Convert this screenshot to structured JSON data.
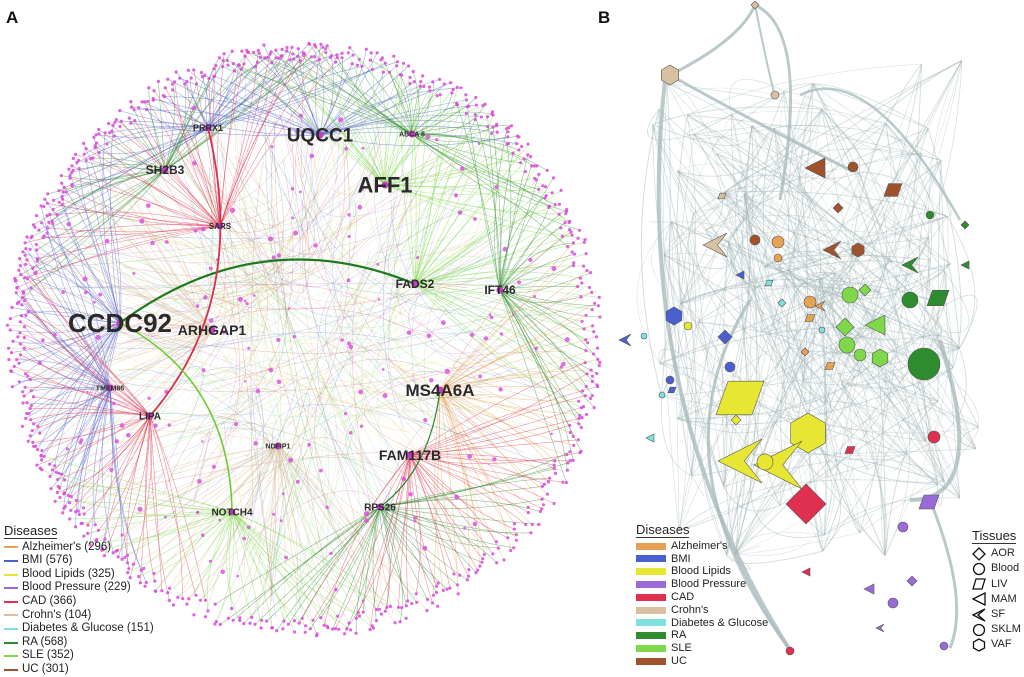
{
  "panels": {
    "a_letter": "A",
    "b_letter": "B"
  },
  "panel_a": {
    "gene_labels": [
      {
        "text": "UQCC1"
      },
      {
        "text": "PRRX1"
      },
      {
        "text": "ABCA 8"
      },
      {
        "text": "SH2B3"
      },
      {
        "text": "AFF1"
      },
      {
        "text": "SARS"
      },
      {
        "text": "FADS2"
      },
      {
        "text": "IFT46"
      },
      {
        "text": "CCDC92"
      },
      {
        "text": "ARHGAP1"
      },
      {
        "text": "TMEM86"
      },
      {
        "text": "MS4A6A"
      },
      {
        "text": "LIPA"
      },
      {
        "text": "NDFIP1"
      },
      {
        "text": "FAM117B"
      },
      {
        "text": "NOTCH4"
      },
      {
        "text": "RPS26"
      }
    ],
    "legend_title": "Diseases",
    "legend": [
      {
        "label": "Alzheimer's (296)",
        "color": "#e8a055"
      },
      {
        "label": "BMI (576)",
        "color": "#4a5fd0"
      },
      {
        "label": "Blood Lipids (325)",
        "color": "#e6e633"
      },
      {
        "label": "Blood Pressure (229)",
        "color": "#9a6ad8"
      },
      {
        "label": "CAD (366)",
        "color": "#e03050"
      },
      {
        "label": "Crohn's (104)",
        "color": "#d8c0a0"
      },
      {
        "label": "Diabetes & Glucose (151)",
        "color": "#7fe0e0"
      },
      {
        "label": "RA (568)",
        "color": "#2e8b2e"
      },
      {
        "label": "SLE (352)",
        "color": "#7ed84a"
      },
      {
        "label": "UC (301)",
        "color": "#a0522d"
      }
    ]
  },
  "panel_b": {
    "legend_title": "Diseases",
    "legend": [
      {
        "label": "Alzheimer's",
        "color": "#e8a055"
      },
      {
        "label": "BMI",
        "color": "#4a5fd0"
      },
      {
        "label": "Blood Lipids",
        "color": "#e6e633"
      },
      {
        "label": "Blood Pressure",
        "color": "#9a6ad8"
      },
      {
        "label": "CAD",
        "color": "#e03050"
      },
      {
        "label": "Crohn's",
        "color": "#d8c0a0"
      },
      {
        "label": "Diabetes & Glucose",
        "color": "#7fe0e0"
      },
      {
        "label": "RA",
        "color": "#2e8b2e"
      },
      {
        "label": "SLE",
        "color": "#7ed84a"
      },
      {
        "label": "UC",
        "color": "#a0522d"
      }
    ],
    "tissues_title": "Tissues",
    "tissues": [
      {
        "label": "AOR",
        "shape": "diamond"
      },
      {
        "label": "Blood",
        "shape": "circle"
      },
      {
        "label": "LIV",
        "shape": "parallelogram"
      },
      {
        "label": "MAM",
        "shape": "triangle"
      },
      {
        "label": "SF",
        "shape": "arrowhead"
      },
      {
        "label": "SKLM",
        "shape": "circle"
      },
      {
        "label": "VAF",
        "shape": "hexagon"
      }
    ]
  }
}
